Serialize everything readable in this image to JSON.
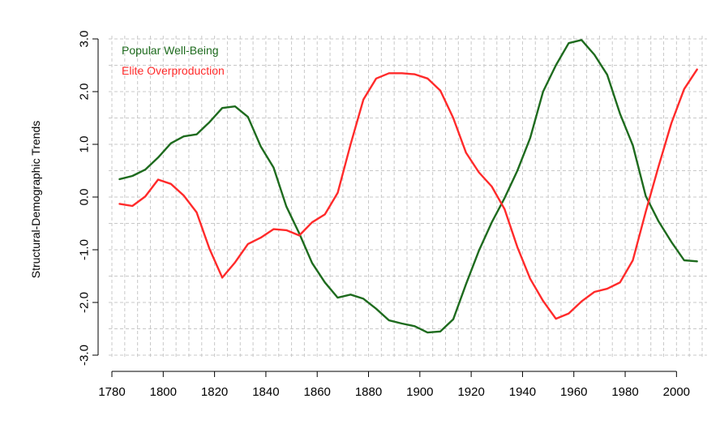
{
  "chart_data": {
    "type": "line",
    "title": "",
    "xlabel": "",
    "ylabel": "Structural-Demographic Trends",
    "xlim": [
      1780,
      2010
    ],
    "ylim": [
      -3.0,
      3.0
    ],
    "x_ticks": [
      1780,
      1800,
      1820,
      1840,
      1860,
      1880,
      1900,
      1920,
      1940,
      1960,
      1980,
      2000
    ],
    "x_tick_labels": [
      "1780",
      "1800",
      "1820",
      "1840",
      "1860",
      "1880",
      "1900",
      "1920",
      "1940",
      "1960",
      "1980",
      "2000"
    ],
    "y_ticks": [
      -3.0,
      -2.0,
      -1.0,
      0.0,
      1.0,
      2.0,
      3.0
    ],
    "y_tick_labels": [
      "-3.0",
      "-2.0",
      "-1.0",
      "0.0",
      "1.0",
      "2.0",
      "3.0"
    ],
    "grid": true,
    "legend_position": "top-left",
    "series": [
      {
        "name": "Popular Well-Being",
        "color": "#1e6b1e",
        "points": [
          [
            1783,
            0.34
          ],
          [
            1788,
            0.4
          ],
          [
            1793,
            0.52
          ],
          [
            1798,
            0.75
          ],
          [
            1803,
            1.02
          ],
          [
            1808,
            1.15
          ],
          [
            1813,
            1.19
          ],
          [
            1818,
            1.42
          ],
          [
            1823,
            1.69
          ],
          [
            1828,
            1.72
          ],
          [
            1833,
            1.52
          ],
          [
            1838,
            0.96
          ],
          [
            1843,
            0.56
          ],
          [
            1848,
            -0.18
          ],
          [
            1853,
            -0.69
          ],
          [
            1858,
            -1.25
          ],
          [
            1863,
            -1.62
          ],
          [
            1868,
            -1.91
          ],
          [
            1873,
            -1.85
          ],
          [
            1878,
            -1.93
          ],
          [
            1883,
            -2.12
          ],
          [
            1888,
            -2.34
          ],
          [
            1893,
            -2.4
          ],
          [
            1898,
            -2.45
          ],
          [
            1903,
            -2.57
          ],
          [
            1908,
            -2.55
          ],
          [
            1913,
            -2.32
          ],
          [
            1918,
            -1.65
          ],
          [
            1923,
            -1.02
          ],
          [
            1928,
            -0.48
          ],
          [
            1933,
            -0.02
          ],
          [
            1938,
            0.5
          ],
          [
            1943,
            1.12
          ],
          [
            1948,
            2.0
          ],
          [
            1953,
            2.5
          ],
          [
            1958,
            2.92
          ],
          [
            1963,
            2.98
          ],
          [
            1968,
            2.7
          ],
          [
            1973,
            2.32
          ],
          [
            1978,
            1.58
          ],
          [
            1983,
            0.98
          ],
          [
            1988,
            0.02
          ],
          [
            1993,
            -0.46
          ],
          [
            1998,
            -0.85
          ],
          [
            2003,
            -1.2
          ],
          [
            2008,
            -1.22
          ]
        ]
      },
      {
        "name": "Elite Overproduction",
        "color": "#ff2a2a",
        "points": [
          [
            1783,
            -0.13
          ],
          [
            1788,
            -0.17
          ],
          [
            1793,
            0.01
          ],
          [
            1798,
            0.33
          ],
          [
            1803,
            0.25
          ],
          [
            1808,
            0.03
          ],
          [
            1813,
            -0.29
          ],
          [
            1818,
            -0.98
          ],
          [
            1823,
            -1.53
          ],
          [
            1828,
            -1.24
          ],
          [
            1833,
            -0.89
          ],
          [
            1838,
            -0.77
          ],
          [
            1843,
            -0.61
          ],
          [
            1848,
            -0.63
          ],
          [
            1853,
            -0.73
          ],
          [
            1858,
            -0.48
          ],
          [
            1863,
            -0.33
          ],
          [
            1868,
            0.08
          ],
          [
            1873,
            1.0
          ],
          [
            1878,
            1.85
          ],
          [
            1883,
            2.25
          ],
          [
            1888,
            2.35
          ],
          [
            1893,
            2.35
          ],
          [
            1898,
            2.33
          ],
          [
            1903,
            2.25
          ],
          [
            1908,
            2.02
          ],
          [
            1913,
            1.5
          ],
          [
            1918,
            0.84
          ],
          [
            1923,
            0.47
          ],
          [
            1928,
            0.2
          ],
          [
            1933,
            -0.23
          ],
          [
            1938,
            -0.95
          ],
          [
            1943,
            -1.55
          ],
          [
            1948,
            -1.97
          ],
          [
            1953,
            -2.31
          ],
          [
            1958,
            -2.21
          ],
          [
            1963,
            -1.98
          ],
          [
            1968,
            -1.8
          ],
          [
            1973,
            -1.74
          ],
          [
            1978,
            -1.62
          ],
          [
            1983,
            -1.2
          ],
          [
            1988,
            -0.28
          ],
          [
            1993,
            0.58
          ],
          [
            1998,
            1.4
          ],
          [
            2003,
            2.05
          ],
          [
            2008,
            2.42
          ]
        ]
      }
    ]
  }
}
